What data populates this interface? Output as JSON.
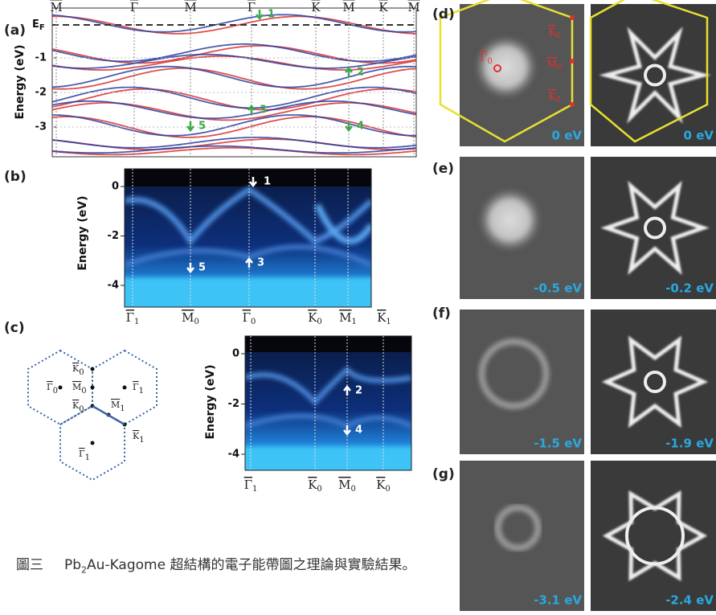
{
  "panel_a": {
    "label": "(a)",
    "k_points": [
      "M",
      "Γ",
      "M",
      "Γ",
      "K",
      "M",
      "K",
      "M"
    ],
    "fermi": {
      "symbol": "E",
      "sub": "F"
    },
    "y_label": "Energy (eV)",
    "yticks": [
      -1,
      -2,
      -3
    ],
    "markers": [
      "1",
      "2",
      "3",
      "4",
      "5"
    ]
  },
  "panel_b": {
    "label": "(b)",
    "y_label": "Energy (eV)",
    "yticks": [
      0,
      -2,
      -4
    ],
    "k_points": [
      {
        "symbol": "Γ",
        "sub": "1"
      },
      {
        "symbol": "M",
        "sub": "0"
      },
      {
        "symbol": "Γ",
        "sub": "0"
      },
      {
        "symbol": "K",
        "sub": "0"
      },
      {
        "symbol": "M",
        "sub": "1"
      },
      {
        "symbol": "K",
        "sub": "1"
      }
    ],
    "markers": [
      "1",
      "5",
      "3"
    ]
  },
  "panel_c": {
    "label": "(c)",
    "bz_points": [
      {
        "symbol": "Γ",
        "sub": "0"
      },
      {
        "symbol": "K",
        "sub": "0"
      },
      {
        "symbol": "M",
        "sub": "0"
      },
      {
        "symbol": "K",
        "sub": "0"
      },
      {
        "symbol": "Γ",
        "sub": "1"
      },
      {
        "symbol": "M",
        "sub": "1"
      },
      {
        "symbol": "K",
        "sub": "1"
      },
      {
        "symbol": "Γ",
        "sub": "1"
      }
    ],
    "y_label": "Energy (eV)",
    "yticks": [
      0,
      -2,
      -4
    ],
    "k_points": [
      {
        "symbol": "Γ",
        "sub": "1"
      },
      {
        "symbol": "K",
        "sub": "0"
      },
      {
        "symbol": "M",
        "sub": "0"
      },
      {
        "symbol": "K",
        "sub": "0"
      }
    ],
    "markers": [
      "2",
      "4"
    ]
  },
  "panel_d": {
    "label": "(d)",
    "points": [
      {
        "symbol": "Γ",
        "sub": "0"
      },
      {
        "symbol": "K",
        "sub": "0"
      },
      {
        "symbol": "M",
        "sub": "0"
      },
      {
        "symbol": "K",
        "sub": "0"
      }
    ],
    "energies": [
      "0 eV",
      "0 eV"
    ]
  },
  "panel_e": {
    "label": "(e)",
    "energies": [
      "-0.5 eV",
      "-0.2 eV"
    ]
  },
  "panel_f": {
    "label": "(f)",
    "energies": [
      "-1.5 eV",
      "-1.9 eV"
    ]
  },
  "panel_g": {
    "label": "(g)",
    "energies": [
      "-3.1 eV",
      "-2.4 eV"
    ]
  },
  "caption": {
    "number": "圖三",
    "text_before": "Pb",
    "subscript": "2",
    "text_after": "Au-Kagome 超結構的電子能帶圖之理論與實驗結果。"
  }
}
